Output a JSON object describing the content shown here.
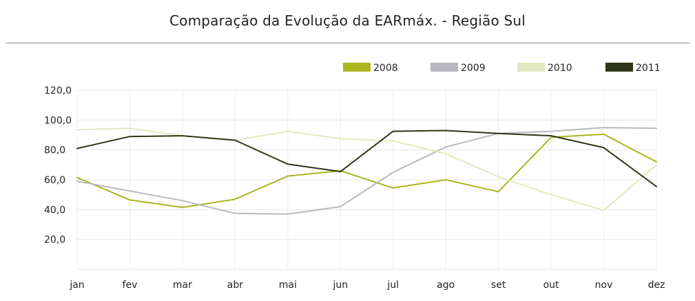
{
  "chart_data": {
    "type": "line",
    "title": "Comparação da Evolução da EARmáx. - Região Sul",
    "xlabel": "",
    "ylabel": "",
    "categories": [
      "jan",
      "fev",
      "mar",
      "abr",
      "mai",
      "jun",
      "jul",
      "ago",
      "set",
      "out",
      "nov",
      "dez"
    ],
    "ylim": [
      0,
      120
    ],
    "yticks": [
      20,
      40,
      60,
      80,
      100,
      120
    ],
    "ytick_labels": [
      "20,0",
      "40,0",
      "60,0",
      "80,0",
      "100,0",
      "120,0"
    ],
    "grid": true,
    "legend_position": "top-right",
    "series": [
      {
        "name": "2008",
        "color": "#aab520",
        "values": [
          61.5,
          46.5,
          41.5,
          47,
          62.5,
          66,
          54.5,
          60,
          52,
          88.5,
          90.5,
          72
        ]
      },
      {
        "name": "2009",
        "color": "#b8b8bf",
        "values": [
          59,
          52.5,
          46,
          37.5,
          37,
          42,
          65,
          82,
          91,
          92.5,
          95,
          94.5
        ]
      },
      {
        "name": "2010",
        "color": "#e1e9c0",
        "values": [
          93.5,
          94.5,
          89.5,
          86.5,
          92.5,
          87.5,
          86,
          77.5,
          62,
          50,
          39.5,
          70
        ]
      },
      {
        "name": "2011",
        "color": "#2f3518",
        "values": [
          81,
          89,
          89.5,
          86.5,
          70.5,
          65.5,
          92.5,
          93,
          91,
          89.5,
          81.5,
          55.5
        ]
      }
    ]
  }
}
